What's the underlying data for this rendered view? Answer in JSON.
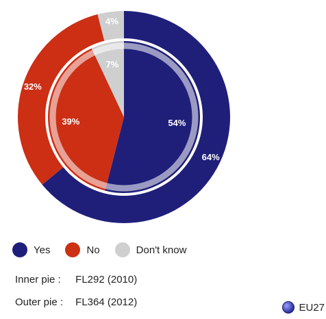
{
  "chart_data": {
    "type": "pie",
    "categories": [
      "Yes",
      "No",
      "Don't know"
    ],
    "colors": [
      "#1f1f7a",
      "#cc2f14",
      "#cfcfcf"
    ],
    "series": [
      {
        "name": "FL292 (2010)",
        "ring": "inner",
        "values": [
          54,
          39,
          7
        ],
        "labels": [
          "54%",
          "39%",
          "7%"
        ]
      },
      {
        "name": "FL364 (2012)",
        "ring": "outer",
        "values": [
          64,
          32,
          4
        ],
        "labels": [
          "64%",
          "32%",
          "4%"
        ]
      }
    ]
  },
  "legend": {
    "items": [
      "Yes",
      "No",
      "Don't know"
    ]
  },
  "notes": {
    "inner_key": "Inner pie :",
    "inner_value": "FL292 (2010)",
    "outer_key": "Outer pie :",
    "outer_value": "FL364 (2012)"
  },
  "badge": {
    "label": "EU27"
  }
}
